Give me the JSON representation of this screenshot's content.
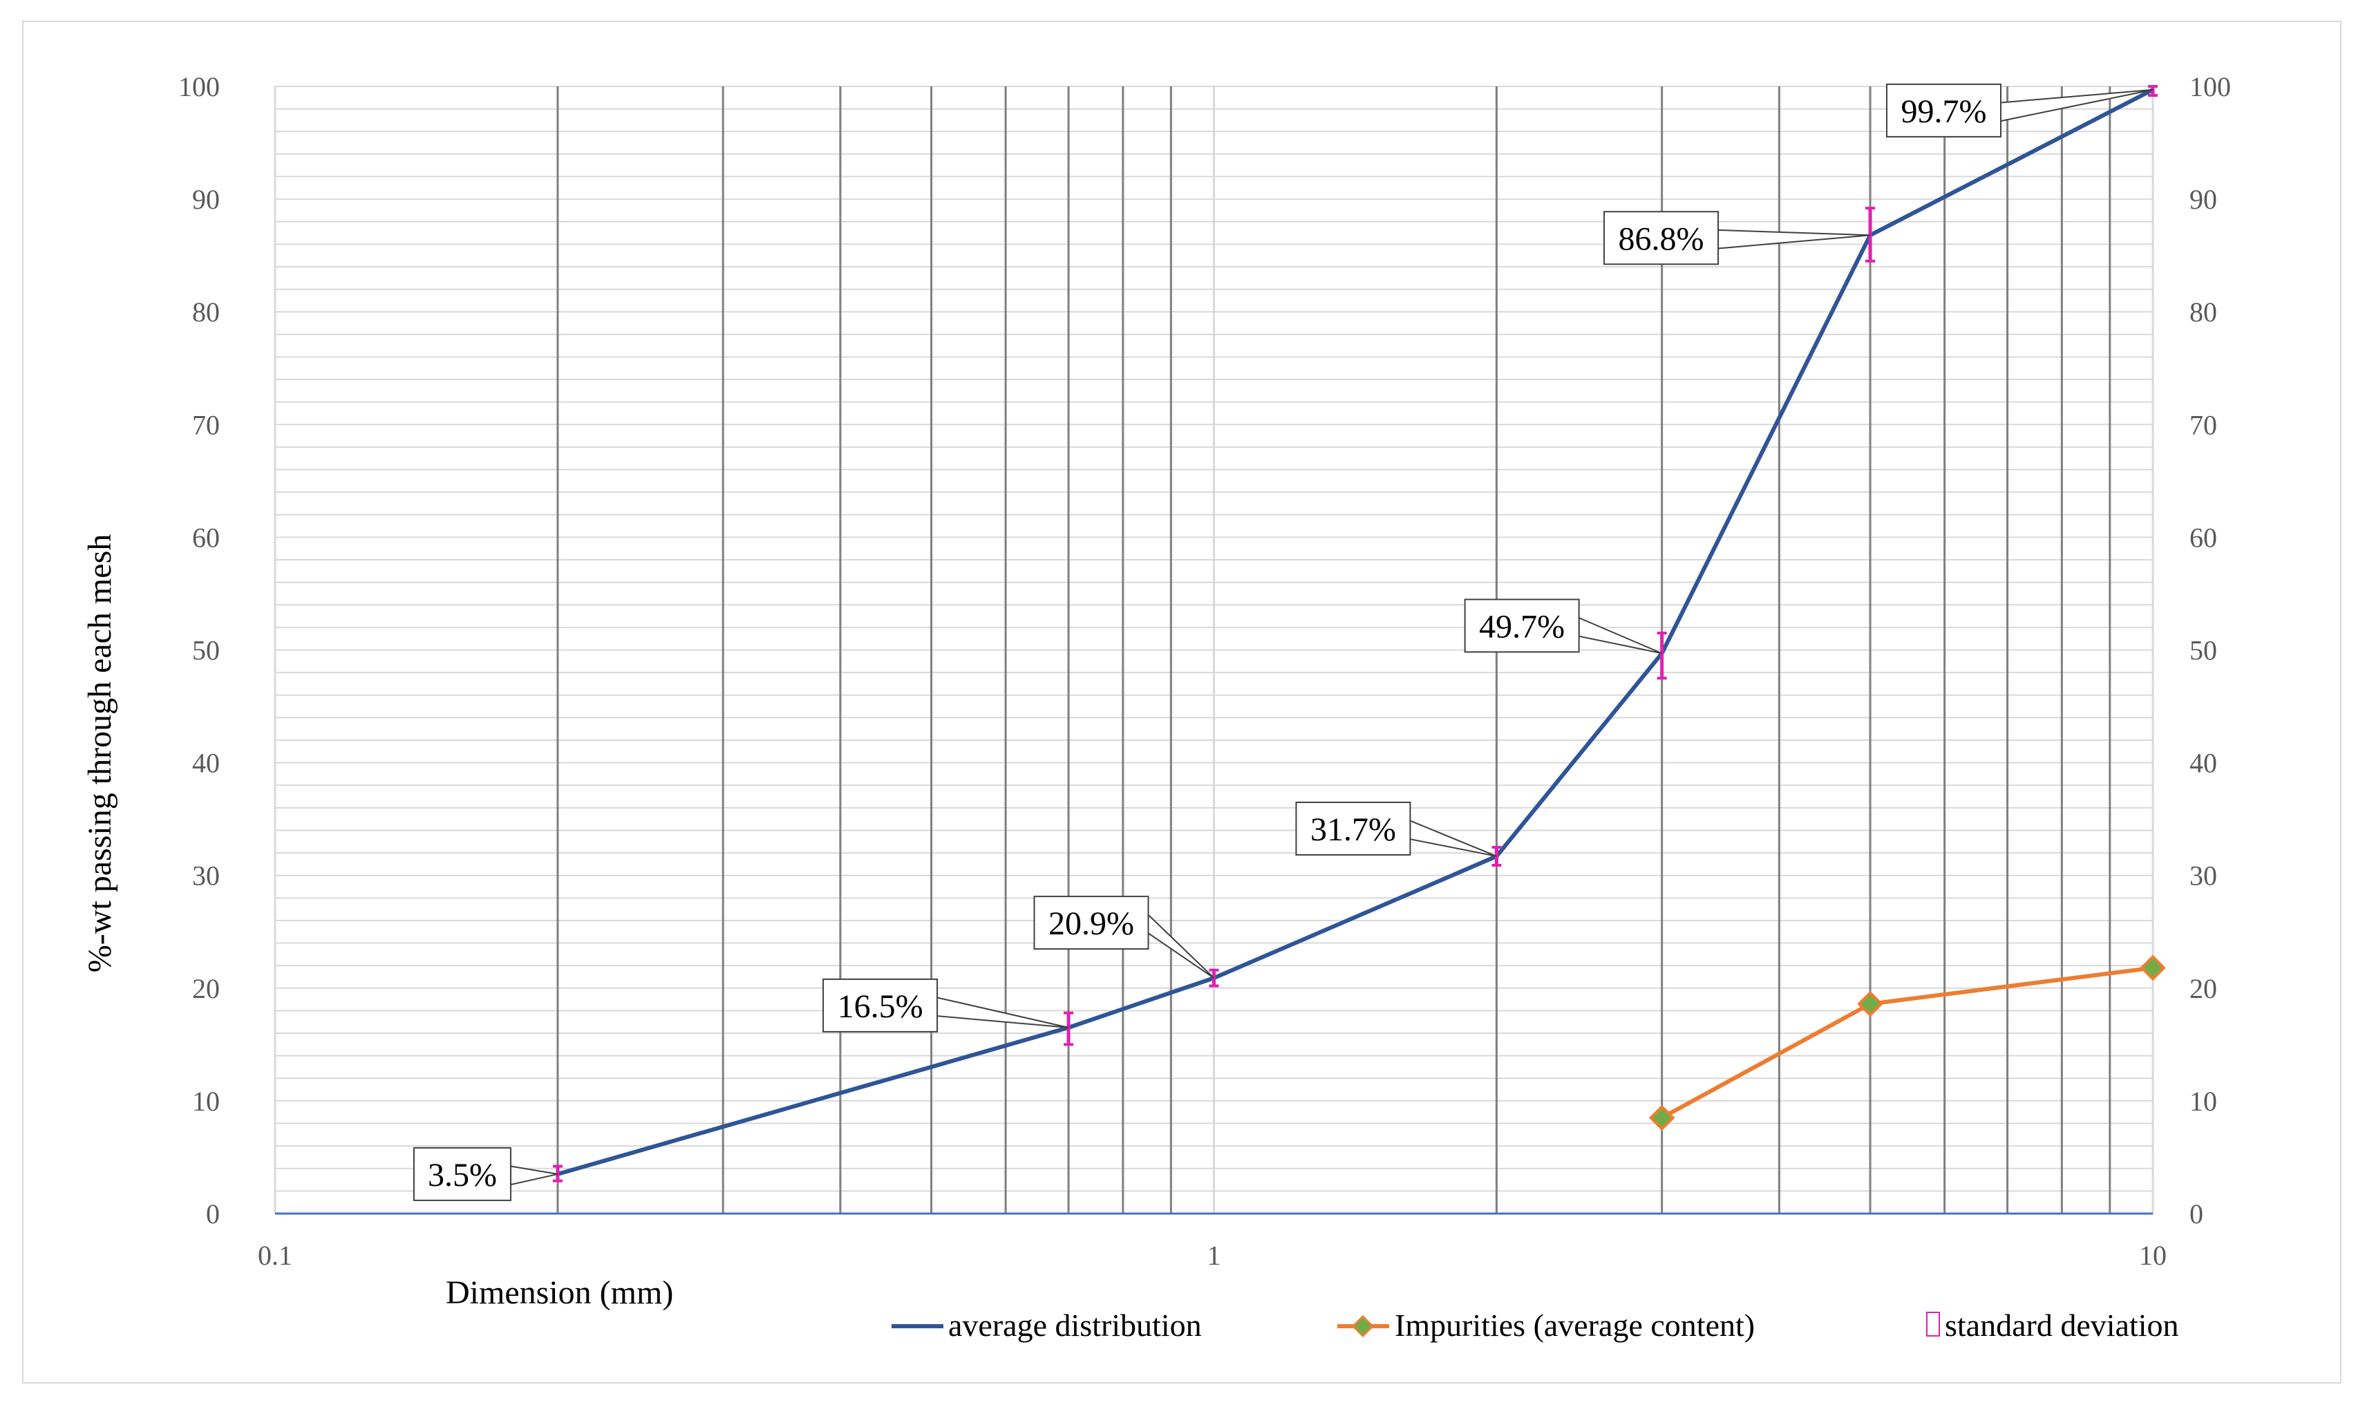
{
  "chart_data": {
    "type": "line",
    "xlabel": "Dimension (mm)",
    "ylabel": "%-wt passing through each mesh",
    "x_scale": "log",
    "xlim": [
      0.1,
      10
    ],
    "ylim": [
      0,
      100
    ],
    "y2lim": [
      0,
      100
    ],
    "x_tick_labels": [
      "0.1",
      "1",
      "10"
    ],
    "y_tick_labels": [
      "0",
      "10",
      "20",
      "30",
      "40",
      "50",
      "60",
      "70",
      "80",
      "90",
      "100"
    ],
    "y2_tick_labels": [
      "0",
      "10",
      "20",
      "30",
      "40",
      "50",
      "60",
      "70",
      "80",
      "90",
      "100"
    ],
    "grid": true,
    "legend_position": "bottom-right",
    "colors": {
      "average_distribution": "#2f5597",
      "impurities": "#ed7d31",
      "impurities_marker": "#70ad47",
      "std_dev": "#e020b0",
      "grid_major": "#7f7f7f",
      "grid_minor": "#d9d9d9",
      "axis": "#4472c4"
    },
    "series": [
      {
        "name": "average distribution",
        "points": [
          {
            "x": 0.2,
            "y": 3.5
          },
          {
            "x": 0.7,
            "y": 16.5
          },
          {
            "x": 1.0,
            "y": 20.9
          },
          {
            "x": 2.0,
            "y": 31.7
          },
          {
            "x": 3.0,
            "y": 49.7
          },
          {
            "x": 5.0,
            "y": 86.8
          },
          {
            "x": 10.0,
            "y": 99.7
          }
        ]
      },
      {
        "name": "Impurities (average content)",
        "points": [
          {
            "x": 3.0,
            "y": 8.5
          },
          {
            "x": 5.0,
            "y": 18.6
          },
          {
            "x": 10.0,
            "y": 21.8
          }
        ]
      },
      {
        "name": "standard deviation",
        "errors": [
          {
            "x": 0.2,
            "low": 2.9,
            "high": 4.2
          },
          {
            "x": 0.7,
            "low": 15.0,
            "high": 17.8
          },
          {
            "x": 1.0,
            "low": 20.2,
            "high": 21.6
          },
          {
            "x": 2.0,
            "low": 30.9,
            "high": 32.5
          },
          {
            "x": 3.0,
            "low": 47.5,
            "high": 51.5
          },
          {
            "x": 5.0,
            "low": 84.5,
            "high": 89.2
          },
          {
            "x": 10.0,
            "low": 99.2,
            "high": 100.0
          }
        ]
      }
    ],
    "data_labels": [
      "3.5%",
      "16.5%",
      "20.9%",
      "31.7%",
      "49.7%",
      "86.8%",
      "99.7%"
    ]
  }
}
